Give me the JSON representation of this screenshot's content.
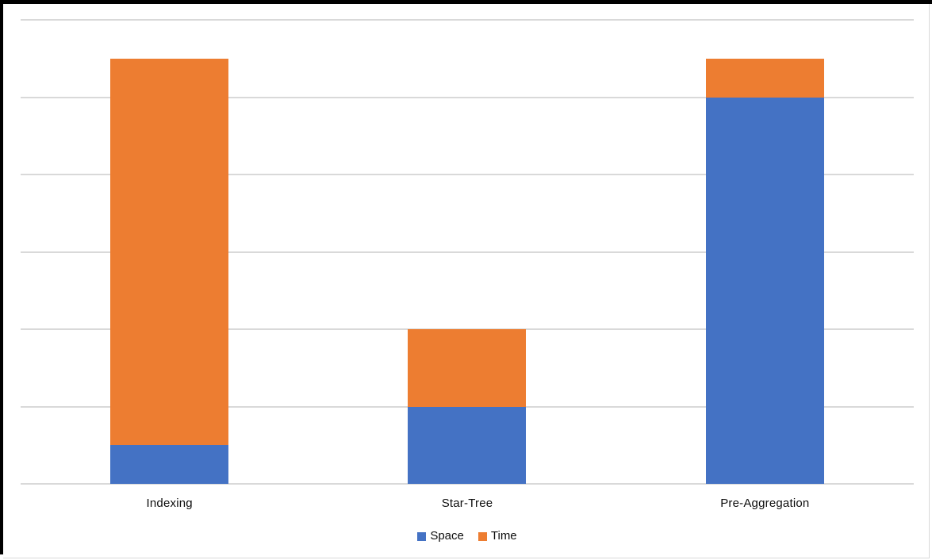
{
  "window": {
    "frame_color": "#000000",
    "edge_color": "#d9d9d9",
    "background": "#ffffff"
  },
  "chart_data": {
    "type": "bar",
    "subtype": "stacked-column",
    "title": "",
    "xlabel": "",
    "ylabel": "",
    "categories": [
      "Indexing",
      "Star-Tree",
      "Pre-Aggregation"
    ],
    "series": [
      {
        "name": "Space",
        "color": "#4472C4",
        "values": [
          0.5,
          1,
          5
        ]
      },
      {
        "name": "Time",
        "color": "#ED7D31",
        "values": [
          5,
          1,
          0.5
        ]
      }
    ],
    "ylim": [
      0,
      6
    ],
    "gridline_interval": 1,
    "y_tick_labels_visible": false,
    "grid": "horizontal",
    "gridline_color": "#d9d9d9",
    "legend_position": "bottom",
    "legend": [
      "Space",
      "Time"
    ]
  }
}
